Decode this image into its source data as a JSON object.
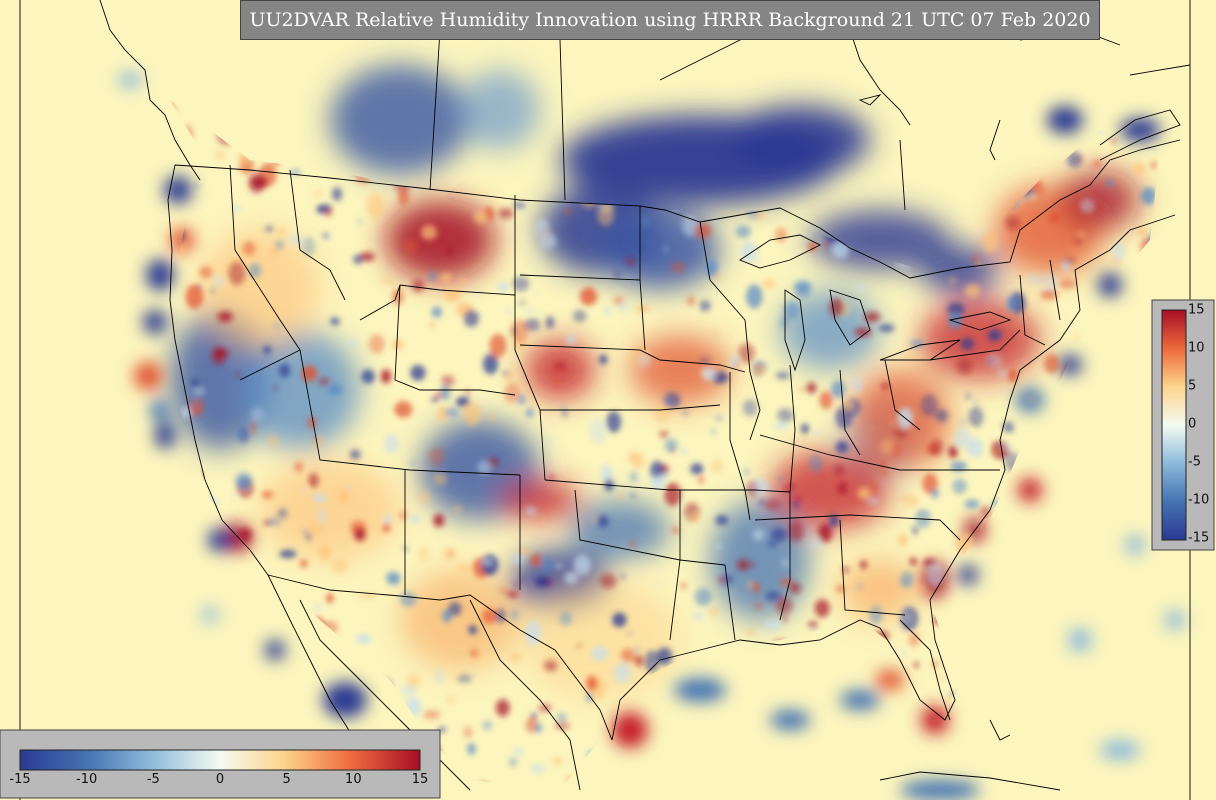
{
  "title": "UU2DVAR Relative Humidity Innovation using HRRR Background 21 UTC 07 Feb 2020",
  "colorbar": {
    "min": -15,
    "max": 15,
    "horizontal_ticks": [
      "-15",
      "-10",
      "-5",
      "0",
      "5",
      "10",
      "15"
    ],
    "vertical_ticks": [
      "15",
      "10",
      "5",
      "0",
      "-5",
      "-10",
      "-15"
    ],
    "colors": {
      "strong_negative": "#2b3a92",
      "negative": "#5a8cc6",
      "weak_negative": "#c6def0",
      "neutral": "#fdf7c2",
      "weak_positive": "#fdc27a",
      "positive": "#e0502e",
      "strong_positive": "#a50f26"
    }
  },
  "map": {
    "background_color": "#fdf7c2",
    "boundary_color": "#000000"
  }
}
